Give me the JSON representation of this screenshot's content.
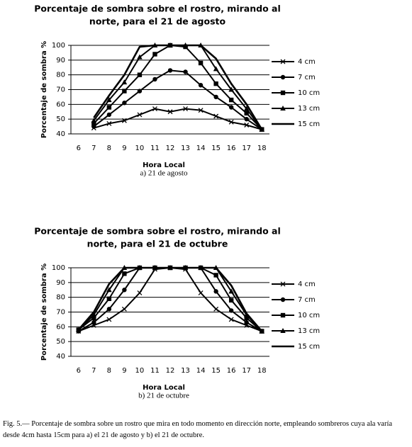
{
  "chart_data": [
    {
      "type": "line",
      "title": [
        "Porcentaje de sombra sobre el rostro, mirando al",
        "norte, para el 21 de agosto"
      ],
      "x_label": "Hora Local",
      "y_label": "Porcentaje de sombra %",
      "subcaption": "a) 21 de agosto",
      "categories": [
        "6",
        "7",
        "8",
        "9",
        "10",
        "11",
        "12",
        "13",
        "14",
        "15",
        "16",
        "17",
        "18"
      ],
      "ylim": [
        40,
        100
      ],
      "yticks": [
        40,
        50,
        60,
        70,
        80,
        90,
        100
      ],
      "grid": true,
      "legend": "right",
      "series": [
        {
          "name": "4 cm",
          "color": "#000000",
          "marker": "x",
          "values": [
            null,
            44,
            47,
            49,
            53,
            57,
            55,
            57,
            56,
            52,
            48,
            46,
            43
          ]
        },
        {
          "name": "7 cm",
          "color": "#000000",
          "marker": "circle",
          "values": [
            null,
            45,
            53,
            61,
            69,
            77,
            83,
            82,
            73,
            65,
            58,
            50,
            43
          ]
        },
        {
          "name": "10 cm",
          "color": "#000000",
          "marker": "square",
          "values": [
            null,
            47,
            58,
            69,
            80,
            94,
            100,
            99,
            88,
            74,
            63,
            54,
            43
          ]
        },
        {
          "name": "13 cm",
          "color": "#000000",
          "marker": "triangle",
          "values": [
            null,
            49,
            63,
            75,
            92,
            100,
            100,
            100,
            100,
            84,
            70,
            57,
            43
          ]
        },
        {
          "name": "15 cm",
          "color": "#000000",
          "marker": "none",
          "values": [
            null,
            51,
            66,
            80,
            99,
            100,
            100,
            100,
            100,
            91,
            74,
            60,
            43
          ]
        }
      ]
    },
    {
      "type": "line",
      "title": [
        "Porcentaje de sombra sobre el rostro, mirando al",
        "norte, para el 21 de octubre"
      ],
      "x_label": "Hora Local",
      "y_label": "Porcentaje de sombra %",
      "subcaption": "b) 21 de octubre",
      "categories": [
        "6",
        "7",
        "8",
        "9",
        "10",
        "11",
        "12",
        "13",
        "14",
        "15",
        "16",
        "17",
        "18"
      ],
      "ylim": [
        40,
        100
      ],
      "yticks": [
        40,
        50,
        60,
        70,
        80,
        90,
        100
      ],
      "grid": true,
      "legend": "right",
      "series": [
        {
          "name": "4 cm",
          "color": "#000000",
          "marker": "x",
          "values": [
            57,
            61,
            65,
            72,
            83,
            99,
            100,
            99,
            83,
            72,
            65,
            61,
            57
          ]
        },
        {
          "name": "7 cm",
          "color": "#000000",
          "marker": "circle",
          "values": [
            57,
            63,
            72,
            85,
            100,
            100,
            100,
            100,
            100,
            84,
            71,
            63,
            57
          ]
        },
        {
          "name": "10 cm",
          "color": "#000000",
          "marker": "square",
          "values": [
            58,
            66,
            79,
            96,
            100,
            100,
            100,
            100,
            100,
            95,
            78,
            66,
            57
          ]
        },
        {
          "name": "13 cm",
          "color": "#000000",
          "marker": "triangle",
          "values": [
            58,
            68,
            85,
            100,
            100,
            100,
            100,
            100,
            100,
            100,
            84,
            68,
            57
          ]
        },
        {
          "name": "15 cm",
          "color": "#000000",
          "marker": "none",
          "values": [
            58,
            70,
            89,
            100,
            100,
            100,
            100,
            100,
            100,
            100,
            88,
            69,
            57
          ]
        }
      ]
    }
  ],
  "figure_caption": "Fig. 5.— Porcentaje de sombra sobre un rostro que mira en todo momento en dirección norte, empleando sombreros cuya ala varía desde 4cm hasta 15cm para a) el 21 de agosto y b) el 21 de octubre."
}
